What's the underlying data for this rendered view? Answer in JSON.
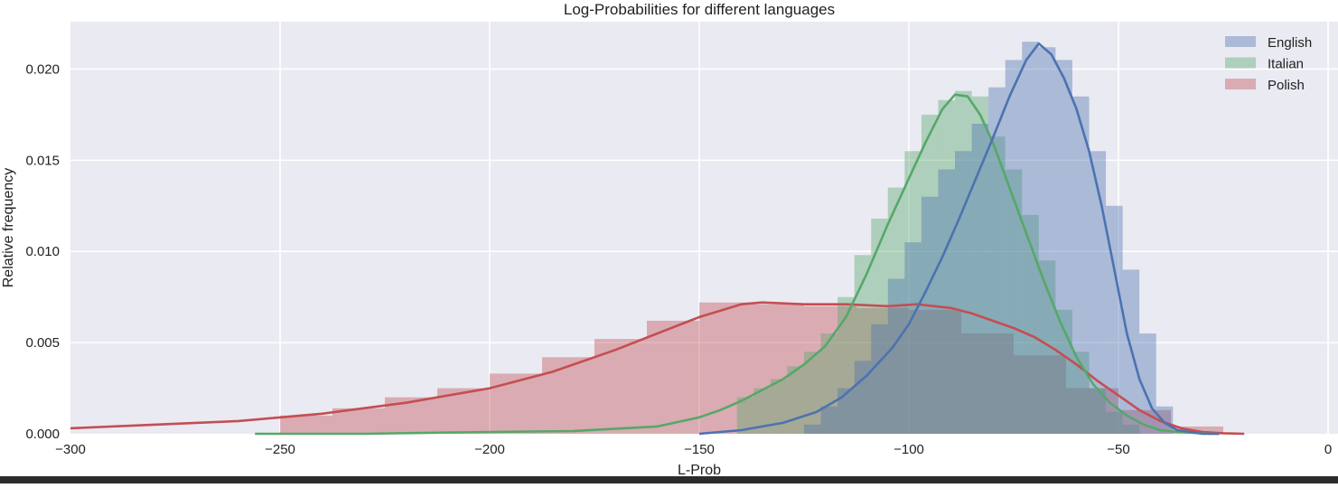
{
  "chart_data": {
    "type": "histogram",
    "title": "Log-Probabilities for different languages",
    "xlabel": "L-Prob",
    "ylabel": "Relative frequency",
    "xlim": [
      -300,
      0
    ],
    "ylim": [
      0,
      0.0226
    ],
    "x_ticks": [
      -300,
      -250,
      -200,
      -150,
      -100,
      -50,
      0
    ],
    "x_tick_labels": [
      "−300",
      "−250",
      "−200",
      "−150",
      "−100",
      "−50",
      "0"
    ],
    "y_ticks": [
      0.0,
      0.005,
      0.01,
      0.015,
      0.02
    ],
    "y_tick_labels": [
      "0.000",
      "0.005",
      "0.010",
      "0.015",
      "0.020"
    ],
    "grid": true,
    "legend_position": "top-right",
    "series": [
      {
        "name": "English",
        "color": "#4c72b0",
        "bin_edges": [
          -125,
          -121,
          -117,
          -113,
          -109,
          -105,
          -101,
          -97,
          -93,
          -89,
          -85,
          -81,
          -77,
          -73,
          -69,
          -65,
          -61,
          -57,
          -53,
          -49,
          -45,
          -41,
          -37
        ],
        "values": [
          0.0005,
          0.0015,
          0.0025,
          0.004,
          0.006,
          0.0085,
          0.0105,
          0.013,
          0.0145,
          0.0155,
          0.017,
          0.019,
          0.0205,
          0.0215,
          0.0212,
          0.0205,
          0.0185,
          0.0155,
          0.0125,
          0.009,
          0.0055,
          0.0015
        ],
        "kde": {
          "x": [
            -150,
            -140,
            -130,
            -122,
            -116,
            -110,
            -104,
            -100,
            -96,
            -92,
            -88,
            -84,
            -80,
            -76,
            -72,
            -69,
            -66,
            -63,
            -60,
            -57,
            -54,
            -51,
            -48,
            -45,
            -42,
            -39,
            -36,
            -33,
            -30,
            -26
          ],
          "y": [
            0.0,
            0.0002,
            0.0006,
            0.0012,
            0.002,
            0.0032,
            0.0047,
            0.006,
            0.0078,
            0.0097,
            0.0118,
            0.014,
            0.0162,
            0.0185,
            0.0205,
            0.0214,
            0.0208,
            0.0195,
            0.0178,
            0.0155,
            0.0125,
            0.009,
            0.0055,
            0.003,
            0.0014,
            0.0006,
            0.0002,
            0.0001,
            0.0,
            0.0
          ]
        }
      },
      {
        "name": "Italian",
        "color": "#55a868",
        "bin_edges": [
          -141,
          -137,
          -133,
          -129,
          -125,
          -121,
          -117,
          -113,
          -109,
          -105,
          -101,
          -97,
          -93,
          -89,
          -85,
          -81,
          -77,
          -73,
          -69,
          -65,
          -61,
          -57,
          -53,
          -49,
          -45
        ],
        "values": [
          0.002,
          0.0025,
          0.003,
          0.0037,
          0.0045,
          0.0055,
          0.0075,
          0.0098,
          0.0118,
          0.0135,
          0.0155,
          0.0175,
          0.0183,
          0.0188,
          0.0185,
          0.0163,
          0.0145,
          0.012,
          0.0095,
          0.0068,
          0.0045,
          0.0025,
          0.0012,
          0.0005
        ],
        "kde": {
          "x": [
            -256,
            -230,
            -200,
            -180,
            -160,
            -150,
            -145,
            -140,
            -135,
            -130,
            -125,
            -120,
            -115,
            -110,
            -105,
            -100,
            -96,
            -92,
            -89,
            -86,
            -83,
            -80,
            -76,
            -72,
            -68,
            -64,
            -60,
            -56,
            -52,
            -48,
            -44,
            -40,
            -36,
            -32,
            -28,
            -26
          ],
          "y": [
            0.0,
            0.0,
            0.0001,
            0.00015,
            0.0004,
            0.0009,
            0.0013,
            0.0018,
            0.0024,
            0.003,
            0.0038,
            0.0048,
            0.0064,
            0.0088,
            0.0115,
            0.014,
            0.016,
            0.0178,
            0.0186,
            0.0185,
            0.0175,
            0.016,
            0.0135,
            0.011,
            0.0085,
            0.0062,
            0.0042,
            0.0027,
            0.0017,
            0.001,
            0.0005,
            0.0002,
            0.0001,
            5e-05,
            0.0,
            0.0
          ]
        }
      },
      {
        "name": "Polish",
        "color": "#c44e52",
        "bin_edges": [
          -250,
          -237.5,
          -225,
          -212.5,
          -200,
          -187.5,
          -175,
          -162.5,
          -150,
          -137.5,
          -125,
          -112.5,
          -100,
          -87.5,
          -75,
          -62.5,
          -50,
          -37.5,
          -25
        ],
        "values": [
          0.001,
          0.0014,
          0.002,
          0.0025,
          0.0033,
          0.0042,
          0.0052,
          0.0062,
          0.0072,
          0.0071,
          0.007,
          0.0069,
          0.0068,
          0.0055,
          0.0043,
          0.0025,
          0.0013,
          0.0004
        ],
        "kde": {
          "x": [
            -300,
            -280,
            -260,
            -240,
            -220,
            -200,
            -185,
            -170,
            -160,
            -150,
            -140,
            -135,
            -125,
            -115,
            -105,
            -98,
            -90,
            -85,
            -80,
            -75,
            -70,
            -65,
            -60,
            -55,
            -50,
            -45,
            -40,
            -35,
            -30,
            -25,
            -20
          ],
          "y": [
            0.0003,
            0.0005,
            0.0007,
            0.0011,
            0.0017,
            0.0025,
            0.0034,
            0.0046,
            0.0055,
            0.0064,
            0.0071,
            0.0072,
            0.0071,
            0.0071,
            0.007,
            0.0071,
            0.0069,
            0.0066,
            0.0062,
            0.0058,
            0.0053,
            0.0046,
            0.0038,
            0.0029,
            0.0021,
            0.0013,
            0.0007,
            0.0003,
            0.0001,
            3e-05,
            0.0
          ]
        }
      }
    ]
  }
}
